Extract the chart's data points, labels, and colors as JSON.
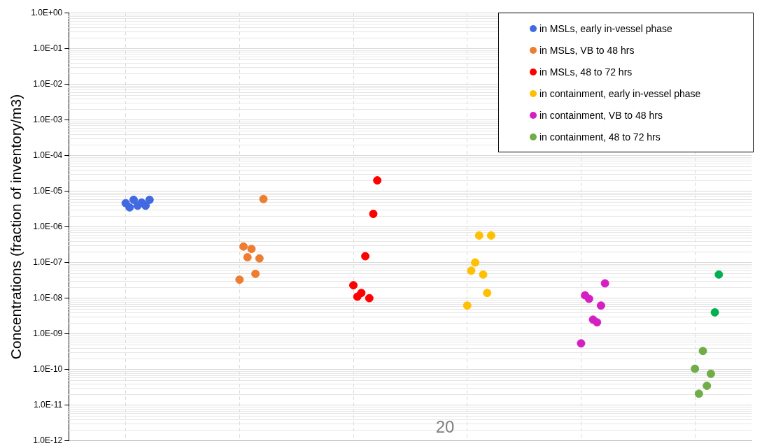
{
  "chart_data": {
    "type": "scatter",
    "ylabel": "Concentrations (fraction of inventory/m3)",
    "log": "y",
    "grid": true,
    "legend": "top right",
    "marker": "circle",
    "tick_labels": "y",
    "categories": [
      null,
      null,
      null,
      null,
      null,
      null
    ],
    "ylim": [
      1e-12,
      1
    ],
    "yticks": [
      {
        "value": 1e-12,
        "label": "1.0E-12"
      },
      {
        "value": 1e-11,
        "label": "1.0E-11"
      },
      {
        "value": 1e-10,
        "label": "1.0E-10"
      },
      {
        "value": 1e-09,
        "label": "1.0E-09"
      },
      {
        "value": 1e-08,
        "label": "1.0E-08"
      },
      {
        "value": 1e-07,
        "label": "1.0E-07"
      },
      {
        "value": 1e-06,
        "label": "1.0E-06"
      },
      {
        "value": 1e-05,
        "label": "1.0E-05"
      },
      {
        "value": 0.0001,
        "label": "1.0E-04"
      },
      {
        "value": 0.001,
        "label": "1.0E-03"
      },
      {
        "value": 0.01,
        "label": "1.0E-02"
      },
      {
        "value": 0.1,
        "label": "1.0E-01"
      },
      {
        "value": 1,
        "label": "1.0E+00"
      }
    ],
    "annotations": [
      "20"
    ],
    "series": [
      {
        "name": "in MSLs, early in-vessel phase",
        "color": "#4169e1",
        "values": [
          4.6e-06,
          null,
          null,
          null,
          null,
          null
        ]
      },
      {
        "color": "#4169e1",
        "values": [
          3.5e-06,
          null,
          null,
          null,
          null,
          null
        ]
      },
      {
        "color": "#4169e1",
        "values": [
          5.7e-06,
          null,
          null,
          null,
          null,
          null
        ]
      },
      {
        "color": "#4169e1",
        "values": [
          3.9e-06,
          null,
          null,
          null,
          null,
          null
        ]
      },
      {
        "color": "#4169e1",
        "values": [
          4.8e-06,
          null,
          null,
          null,
          null,
          null
        ]
      },
      {
        "name": "in MSLs, VB to 48 hrs",
        "color": "#ed7d31",
        "values": [
          null,
          3.3e-08,
          null,
          null,
          null,
          null
        ]
      },
      {
        "color": "#ed7d31",
        "values": [
          null,
          2.8e-07,
          null,
          null,
          null,
          null
        ]
      },
      {
        "color": "#ed7d31",
        "values": [
          null,
          1.4e-07,
          null,
          null,
          null,
          null
        ]
      },
      {
        "color": "#ed7d31",
        "values": [
          null,
          2.4e-07,
          null,
          null,
          null,
          null
        ]
      },
      {
        "color": "#ed7d31",
        "values": [
          null,
          4.8e-08,
          null,
          null,
          null,
          null
        ]
      },
      {
        "name": "in MSLs, 48 to 72 hrs",
        "color": "#ff0000",
        "values": [
          null,
          null,
          2.3e-08,
          null,
          null,
          null
        ]
      },
      {
        "color": "#ff0000",
        "values": [
          null,
          null,
          1.1e-08,
          null,
          null,
          null
        ]
      },
      {
        "color": "#ff0000",
        "values": [
          null,
          null,
          1.4e-08,
          null,
          null,
          null
        ]
      },
      {
        "color": "#ff0000",
        "values": [
          null,
          null,
          1.5e-07,
          null,
          null,
          null
        ]
      },
      {
        "color": "#ff0000",
        "values": [
          null,
          null,
          1e-08,
          null,
          null,
          null
        ]
      },
      {
        "name": "in containment, early in-vessel phase",
        "color": "#ffc000",
        "values": [
          null,
          null,
          null,
          6.2e-09,
          null,
          null
        ]
      },
      {
        "color": "#ffc000",
        "values": [
          null,
          null,
          null,
          5.9e-08,
          null,
          null
        ]
      },
      {
        "color": "#ffc000",
        "values": [
          null,
          null,
          null,
          1e-07,
          null,
          null
        ]
      },
      {
        "color": "#ffc000",
        "values": [
          null,
          null,
          null,
          5.7e-07,
          null,
          null
        ]
      },
      {
        "color": "#ffc000",
        "values": [
          null,
          null,
          null,
          4.6e-08,
          null,
          null
        ]
      },
      {
        "name": "in containment, VB to 48 hrs",
        "color": "#d61fc2",
        "values": [
          null,
          null,
          null,
          null,
          5.4e-10,
          null
        ]
      },
      {
        "color": "#d61fc2",
        "values": [
          null,
          null,
          null,
          null,
          1.2e-08,
          null
        ]
      },
      {
        "color": "#d61fc2",
        "values": [
          null,
          null,
          null,
          null,
          9.6e-09,
          null
        ]
      },
      {
        "color": "#d61fc2",
        "values": [
          null,
          null,
          null,
          null,
          2.5e-09,
          null
        ]
      },
      {
        "color": "#d61fc2",
        "values": [
          null,
          null,
          null,
          null,
          2.1e-09,
          null
        ]
      },
      {
        "name": "in containment, 48 to 72 hrs",
        "color": "#70ad47",
        "values": [
          null,
          null,
          null,
          null,
          null,
          1.05e-10
        ]
      },
      {
        "color": "#70ad47",
        "values": [
          null,
          null,
          null,
          null,
          null,
          2.1e-11
        ]
      },
      {
        "color": "#70ad47",
        "values": [
          null,
          null,
          null,
          null,
          null,
          3.3e-10
        ]
      },
      {
        "color": "#70ad47",
        "values": [
          null,
          null,
          null,
          null,
          null,
          3.5e-11
        ]
      },
      {
        "color": "#70ad47",
        "values": [
          null,
          null,
          null,
          null,
          null,
          7.6e-11
        ]
      },
      {
        "color": "#4169e1",
        "values": [
          3.9e-06,
          null,
          null,
          null,
          null,
          null
        ]
      },
      {
        "color": "#4169e1",
        "values": [
          5.7e-06,
          null,
          null,
          null,
          null,
          null
        ]
      },
      {
        "color": "#ed7d31",
        "values": [
          null,
          1.3e-07,
          null,
          null,
          null,
          null
        ]
      },
      {
        "color": "#ed7d31",
        "values": [
          null,
          6e-06,
          null,
          null,
          null,
          null
        ]
      },
      {
        "color": "#ff0000",
        "values": [
          null,
          null,
          2.3e-06,
          null,
          null,
          null
        ]
      },
      {
        "color": "#ff0000",
        "values": [
          null,
          null,
          2e-05,
          null,
          null,
          null
        ]
      },
      {
        "color": "#ffc000",
        "values": [
          null,
          null,
          null,
          1.4e-08,
          null,
          null
        ]
      },
      {
        "color": "#ffc000",
        "values": [
          null,
          null,
          null,
          5.7e-07,
          null,
          null
        ]
      },
      {
        "color": "#d61fc2",
        "values": [
          null,
          null,
          null,
          null,
          6.2e-09,
          null
        ]
      },
      {
        "color": "#d61fc2",
        "values": [
          null,
          null,
          null,
          null,
          2.6e-08,
          null
        ]
      },
      {
        "color": "#00b050",
        "values": [
          null,
          null,
          null,
          null,
          null,
          4e-09
        ]
      },
      {
        "color": "#00b050",
        "values": [
          null,
          null,
          null,
          null,
          null,
          4.6e-08
        ]
      }
    ]
  }
}
